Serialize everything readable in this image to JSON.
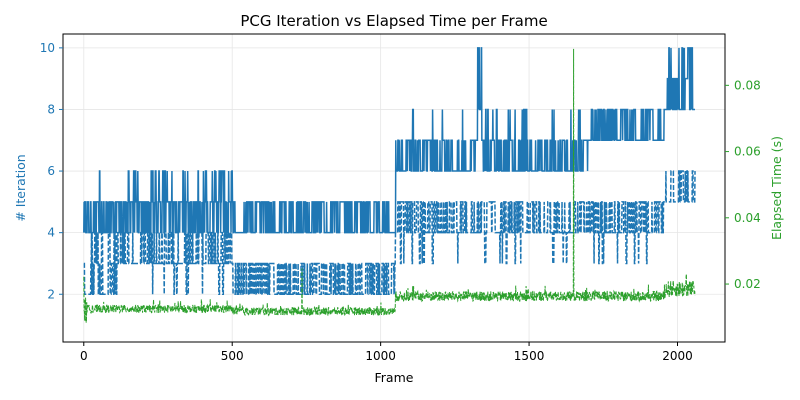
{
  "chart_data": {
    "type": "line",
    "title": "PCG Iteration vs Elapsed Time per Frame",
    "xlabel": "Frame",
    "ylabel_left": "# Iteration",
    "ylabel_right": "Elapsed Time (s)",
    "xlim": [
      -70,
      2160
    ],
    "ylim_left": [
      0.45,
      10.45
    ],
    "ylim_right": [
      0.0025,
      0.0955
    ],
    "xticks": [
      "0",
      "500",
      "1000",
      "1500",
      "2000"
    ],
    "yticks_left": [
      "2",
      "4",
      "6",
      "8",
      "10"
    ],
    "yticks_right": [
      "0.02",
      "0.04",
      "0.06",
      "0.08"
    ],
    "grid": true,
    "colors": {
      "iteration": "#1f77b4",
      "elapsed": "#2ca02c"
    },
    "series": [
      {
        "axis": "left",
        "style": "solid",
        "segments": [
          {
            "x": [
              0,
              30
            ],
            "levels": [
              4,
              5
            ],
            "peak": 5,
            "p_peak": 0.1
          },
          {
            "x": [
              30,
              150
            ],
            "levels": [
              4,
              5
            ],
            "peak": 6,
            "p_peak": 0.03
          },
          {
            "x": [
              150,
              500
            ],
            "levels": [
              5,
              4
            ],
            "peak": 6,
            "p_peak": 0.14
          },
          {
            "x": [
              500,
              1050
            ],
            "levels": [
              4,
              5
            ],
            "peak": 5,
            "p_peak": 0
          },
          {
            "x": [
              1050,
              1320
            ],
            "levels": [
              6,
              7
            ],
            "peak": 8,
            "p_peak": 0.03
          },
          {
            "x": [
              1320,
              1340
            ],
            "levels": [
              7,
              8
            ],
            "peak": 10,
            "p_peak": 0.3
          },
          {
            "x": [
              1340,
              1700
            ],
            "levels": [
              6,
              7
            ],
            "peak": 8,
            "p_peak": 0.08
          },
          {
            "x": [
              1700,
              1960
            ],
            "levels": [
              7,
              8
            ],
            "peak": 7,
            "p_peak": 0
          },
          {
            "x": [
              1960,
              2060
            ],
            "levels": [
              8,
              9
            ],
            "peak": 10,
            "p_peak": 0.2
          }
        ]
      },
      {
        "axis": "left",
        "style": "dashed",
        "segments": [
          {
            "x": [
              0,
              120
            ],
            "levels": [
              2,
              3
            ],
            "peak": 4,
            "p_peak": 0.2
          },
          {
            "x": [
              120,
              500
            ],
            "levels": [
              3,
              4
            ],
            "peak": 2,
            "p_peak": 0.06
          },
          {
            "x": [
              500,
              1050
            ],
            "levels": [
              2,
              3
            ],
            "peak": 3,
            "p_peak": 0
          },
          {
            "x": [
              1050,
              1960
            ],
            "levels": [
              4,
              5
            ],
            "peak": 3,
            "p_peak": 0.05
          },
          {
            "x": [
              1960,
              2060
            ],
            "levels": [
              5,
              6
            ],
            "peak": 6,
            "p_peak": 0
          }
        ]
      },
      {
        "axis": "right",
        "style": "dashed",
        "segments": [
          {
            "x": [
              0,
              10
            ],
            "y": 0.012,
            "amp": 0.004
          },
          {
            "x": [
              10,
              500
            ],
            "y": 0.0125,
            "amp": 0.0012
          },
          {
            "x": [
              500,
              1050
            ],
            "y": 0.0118,
            "amp": 0.0012
          },
          {
            "x": [
              1050,
              1960
            ],
            "y": 0.0163,
            "amp": 0.0015
          },
          {
            "x": [
              1960,
              2060
            ],
            "y": 0.0185,
            "amp": 0.0025
          }
        ],
        "spikes": [
          {
            "x": 0,
            "y": 0.0222
          },
          {
            "x": 735,
            "y": 0.0247
          },
          {
            "x": 1650,
            "y": 0.091
          },
          {
            "x": 2030,
            "y": 0.023
          }
        ]
      }
    ]
  }
}
